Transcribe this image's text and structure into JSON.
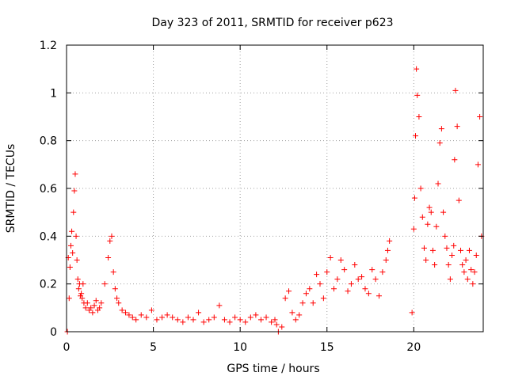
{
  "colors": {
    "series": "#ff0000",
    "grid": "#a0a0a0",
    "axis": "#000000"
  },
  "chart_data": {
    "type": "scatter",
    "title": "Day 323 of 2011, SRMTID for receiver p623",
    "xlabel": "GPS time / hours",
    "ylabel": "SRMTID / TECUs",
    "xlim": [
      0,
      24
    ],
    "ylim": [
      0,
      1.2
    ],
    "xticks": [
      0,
      5,
      10,
      15,
      20
    ],
    "xtick_labels": [
      "0",
      "5",
      "10",
      "15",
      "20"
    ],
    "yticks": [
      0,
      0.2,
      0.4,
      0.6,
      0.8,
      1,
      1.2
    ],
    "ytick_labels": [
      "0",
      "0.2",
      "0.4",
      "0.6",
      "0.8",
      "1",
      "1.2"
    ],
    "grid": true,
    "marker": "+",
    "series": [
      {
        "name": "SRMTID",
        "x": [
          0.05,
          0.1,
          0.15,
          0.2,
          0.25,
          0.3,
          0.35,
          0.4,
          0.45,
          0.5,
          0.55,
          0.6,
          0.65,
          0.7,
          0.75,
          0.8,
          0.85,
          0.9,
          0.95,
          1.0,
          1.1,
          1.2,
          1.3,
          1.4,
          1.5,
          1.6,
          1.7,
          1.8,
          1.9,
          2.0,
          2.2,
          2.4,
          2.5,
          2.6,
          2.7,
          2.8,
          2.9,
          3.0,
          3.2,
          3.4,
          3.6,
          3.8,
          4.0,
          4.3,
          4.6,
          4.9,
          5.2,
          5.5,
          5.8,
          6.1,
          6.4,
          6.7,
          7.0,
          7.3,
          7.6,
          7.9,
          8.2,
          8.5,
          8.8,
          9.1,
          9.4,
          9.7,
          10.0,
          10.3,
          10.6,
          10.9,
          11.2,
          11.5,
          11.8,
          12.0,
          12.1,
          12.2,
          12.4,
          12.6,
          12.8,
          13.0,
          13.2,
          13.4,
          13.6,
          13.8,
          14.0,
          14.2,
          14.4,
          14.6,
          14.8,
          15.0,
          15.2,
          15.4,
          15.6,
          15.8,
          16.0,
          16.2,
          16.4,
          16.6,
          16.8,
          17.0,
          17.2,
          17.4,
          17.6,
          17.8,
          18.0,
          18.2,
          18.4,
          18.5,
          18.6,
          19.9,
          20.0,
          20.05,
          20.1,
          20.15,
          20.2,
          20.3,
          20.4,
          20.5,
          20.6,
          20.7,
          20.8,
          20.9,
          21.0,
          21.1,
          21.2,
          21.3,
          21.4,
          21.5,
          21.6,
          21.7,
          21.8,
          21.9,
          22.0,
          22.1,
          22.2,
          22.3,
          22.35,
          22.4,
          22.5,
          22.6,
          22.7,
          22.8,
          22.9,
          23.0,
          23.1,
          23.2,
          23.3,
          23.4,
          23.5,
          23.6,
          23.7,
          23.8,
          23.9
        ],
        "y": [
          0.0,
          0.31,
          0.14,
          0.27,
          0.36,
          0.42,
          0.33,
          0.5,
          0.59,
          0.66,
          0.4,
          0.3,
          0.22,
          0.18,
          0.2,
          0.15,
          0.16,
          0.14,
          0.2,
          0.12,
          0.1,
          0.12,
          0.09,
          0.1,
          0.08,
          0.11,
          0.13,
          0.09,
          0.1,
          0.12,
          0.2,
          0.31,
          0.38,
          0.4,
          0.25,
          0.18,
          0.14,
          0.12,
          0.09,
          0.08,
          0.07,
          0.06,
          0.05,
          0.07,
          0.06,
          0.09,
          0.05,
          0.06,
          0.07,
          0.06,
          0.05,
          0.04,
          0.06,
          0.05,
          0.08,
          0.04,
          0.05,
          0.06,
          0.11,
          0.05,
          0.04,
          0.06,
          0.05,
          0.04,
          0.06,
          0.07,
          0.05,
          0.06,
          0.04,
          0.05,
          0.03,
          0.0,
          0.02,
          0.14,
          0.17,
          0.08,
          0.05,
          0.07,
          0.12,
          0.16,
          0.18,
          0.12,
          0.24,
          0.2,
          0.14,
          0.25,
          0.31,
          0.18,
          0.22,
          0.3,
          0.26,
          0.17,
          0.2,
          0.28,
          0.22,
          0.23,
          0.18,
          0.16,
          0.26,
          0.22,
          0.15,
          0.25,
          0.3,
          0.34,
          0.38,
          0.08,
          0.43,
          0.56,
          0.82,
          1.1,
          0.99,
          0.9,
          0.6,
          0.48,
          0.35,
          0.3,
          0.45,
          0.52,
          0.5,
          0.34,
          0.28,
          0.44,
          0.62,
          0.79,
          0.85,
          0.5,
          0.4,
          0.35,
          0.28,
          0.22,
          0.32,
          0.36,
          0.72,
          1.01,
          0.86,
          0.55,
          0.34,
          0.28,
          0.25,
          0.3,
          0.22,
          0.34,
          0.26,
          0.2,
          0.25,
          0.32,
          0.7,
          0.9,
          0.4
        ]
      }
    ]
  }
}
